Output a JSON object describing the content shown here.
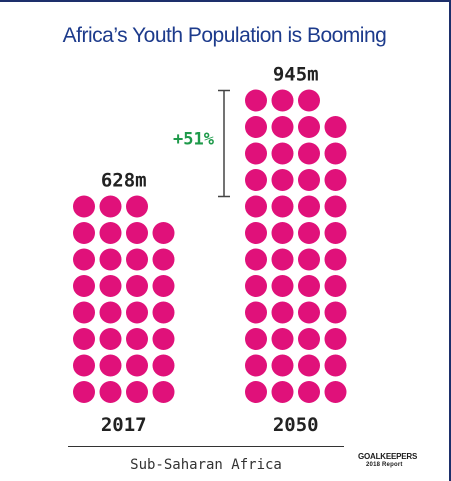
{
  "title": "Africa’s Youth Population is Booming",
  "chart_data": {
    "type": "pictogram",
    "unit": "each dot represents the same number of young people",
    "series": [
      {
        "category": "2017",
        "value_label": "628m",
        "value": 628,
        "dots": 31,
        "per_row": 4,
        "top_row_dots": 3,
        "color": "#e0117a"
      },
      {
        "category": "2050",
        "value_label": "945m",
        "value": 945,
        "dots": 47,
        "per_row": 4,
        "top_row_dots": 3,
        "color": "#e0117a"
      }
    ],
    "growth_label": "+51%",
    "growth_color": "#1e9a4a",
    "xlabel": "Sub-Saharan Africa"
  },
  "logo": {
    "name": "GOALKEEPERS",
    "sub": "2018 Report"
  },
  "colors": {
    "dot": "#e0117a",
    "title": "#1d3b8c",
    "growth": "#1e9a4a",
    "text": "#222222"
  }
}
